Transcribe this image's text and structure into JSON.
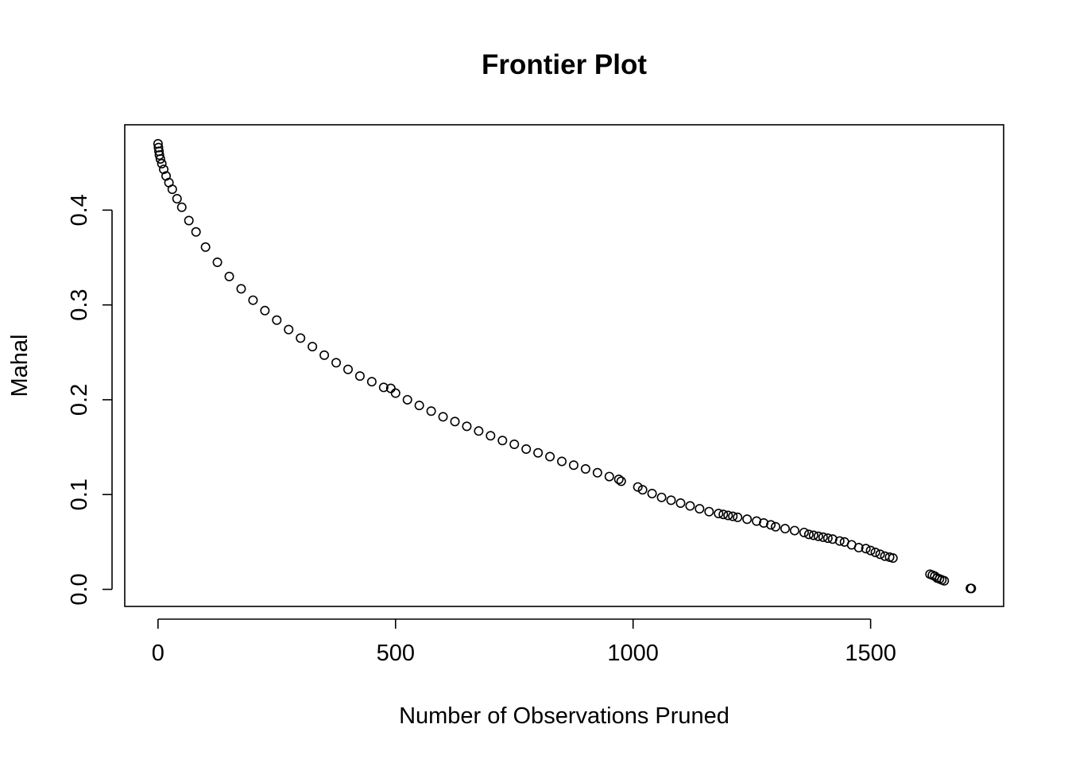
{
  "chart_data": {
    "type": "scatter",
    "title": "Frontier Plot",
    "xlabel": "Number of Observations Pruned",
    "ylabel": "Mahal",
    "xlim": [
      -70,
      1780
    ],
    "ylim": [
      -0.018,
      0.49
    ],
    "xticks": [
      0,
      500,
      1000,
      1500
    ],
    "xtick_labels": [
      "0",
      "500",
      "1000",
      "1500"
    ],
    "yticks": [
      0.0,
      0.1,
      0.2,
      0.3,
      0.4
    ],
    "ytick_labels": [
      "0.0",
      "0.1",
      "0.2",
      "0.3",
      "0.4"
    ],
    "grid": false,
    "legend": false,
    "marker": "open-circle",
    "series": [
      {
        "x": [
          0,
          1,
          2,
          3,
          5,
          8,
          12,
          17,
          23,
          30,
          40,
          50,
          65,
          80,
          100,
          125,
          150,
          175,
          200,
          225,
          250,
          275,
          300,
          325,
          350,
          375,
          400,
          425,
          450,
          475,
          490,
          500,
          525,
          550,
          575,
          600,
          625,
          650,
          675,
          700,
          725,
          750,
          775,
          800,
          825,
          850,
          875,
          900,
          925,
          950,
          970,
          975,
          1010,
          1020,
          1040,
          1060,
          1080,
          1100,
          1120,
          1140,
          1160,
          1180,
          1190,
          1200,
          1210,
          1220,
          1240,
          1260,
          1275,
          1290,
          1300,
          1320,
          1340,
          1360,
          1370,
          1380,
          1390,
          1400,
          1410,
          1420,
          1435,
          1445,
          1460,
          1475,
          1490,
          1500,
          1510,
          1520,
          1530,
          1540,
          1547,
          1625,
          1630,
          1635,
          1640,
          1645,
          1650,
          1655,
          1710,
          1712
        ],
        "y": [
          0.47,
          0.466,
          0.462,
          0.458,
          0.454,
          0.449,
          0.443,
          0.436,
          0.429,
          0.422,
          0.412,
          0.403,
          0.389,
          0.377,
          0.361,
          0.345,
          0.33,
          0.317,
          0.305,
          0.294,
          0.284,
          0.274,
          0.265,
          0.256,
          0.247,
          0.239,
          0.232,
          0.225,
          0.219,
          0.213,
          0.212,
          0.207,
          0.2,
          0.194,
          0.188,
          0.182,
          0.177,
          0.172,
          0.167,
          0.162,
          0.157,
          0.153,
          0.148,
          0.144,
          0.14,
          0.135,
          0.131,
          0.127,
          0.123,
          0.119,
          0.116,
          0.114,
          0.108,
          0.105,
          0.101,
          0.097,
          0.094,
          0.091,
          0.088,
          0.085,
          0.082,
          0.08,
          0.079,
          0.078,
          0.077,
          0.076,
          0.074,
          0.072,
          0.07,
          0.068,
          0.066,
          0.064,
          0.062,
          0.06,
          0.058,
          0.057,
          0.056,
          0.055,
          0.054,
          0.053,
          0.051,
          0.05,
          0.047,
          0.044,
          0.043,
          0.041,
          0.039,
          0.037,
          0.035,
          0.034,
          0.033,
          0.016,
          0.015,
          0.014,
          0.012,
          0.011,
          0.01,
          0.009,
          0.001,
          0.001
        ]
      }
    ]
  }
}
